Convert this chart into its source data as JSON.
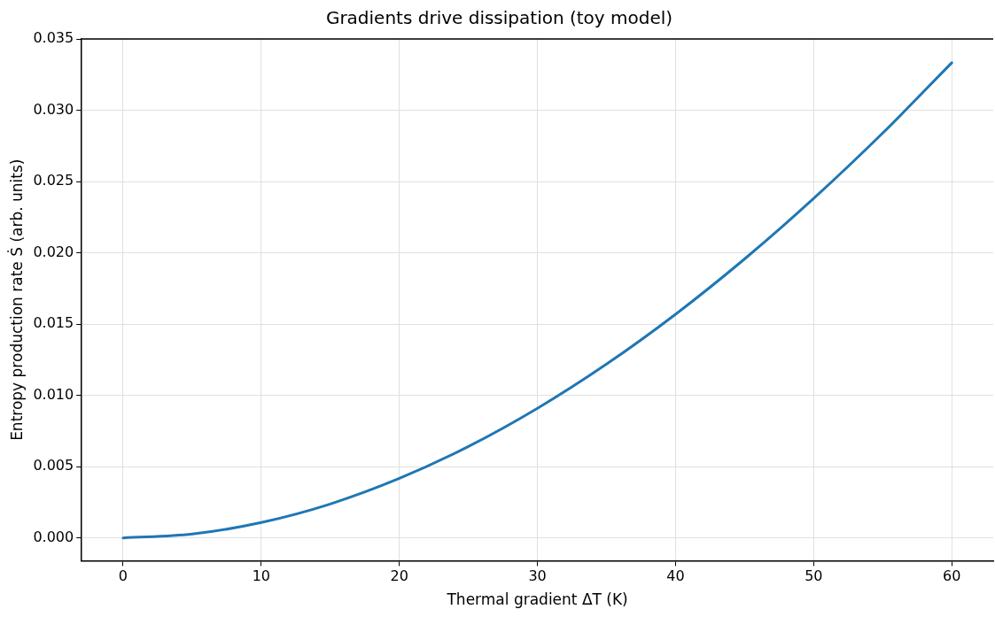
{
  "chart_data": {
    "type": "line",
    "title": "Gradients drive dissipation (toy model)",
    "xlabel": "Thermal gradient ΔT (K)",
    "ylabel": "Entropy production rate Ṡ (arb. units)",
    "x": [
      0,
      5,
      10,
      15,
      20,
      25,
      30,
      35,
      40,
      45,
      50,
      55,
      60
    ],
    "series": [
      {
        "color": "#1f77b4",
        "values": [
          0,
          0.00027,
          0.00108,
          0.00238,
          0.00417,
          0.00641,
          0.00909,
          0.01219,
          0.01569,
          0.01957,
          0.02381,
          0.0284,
          0.03333
        ]
      }
    ],
    "xlim": [
      -3,
      63
    ],
    "ylim": [
      -0.0016,
      0.035
    ],
    "xticks": [
      0,
      10,
      20,
      30,
      40,
      50,
      60
    ],
    "yticks": [
      {
        "value": 0,
        "label": "0.000"
      },
      {
        "value": 0.005,
        "label": "0.005"
      },
      {
        "value": 0.01,
        "label": "0.010"
      },
      {
        "value": 0.015,
        "label": "0.015"
      },
      {
        "value": 0.02,
        "label": "0.020"
      },
      {
        "value": 0.025,
        "label": "0.025"
      },
      {
        "value": 0.03,
        "label": "0.030"
      },
      {
        "value": 0.035,
        "label": "0.035"
      }
    ],
    "grid": true,
    "legend": false,
    "marker": "none",
    "line_style": "solid"
  }
}
